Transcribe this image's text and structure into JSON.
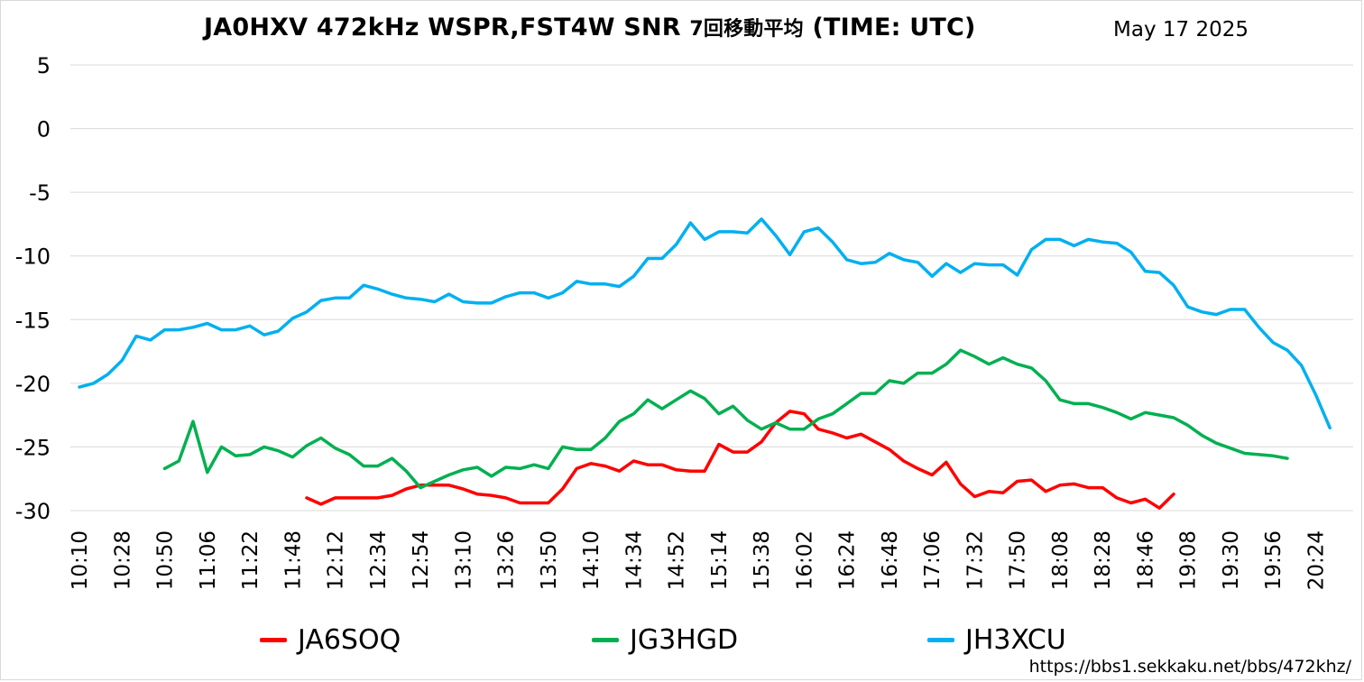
{
  "title_main": "JA0HXV 472kHz WSPR,FST4W SNR",
  "title_sub": "7回移動平均",
  "title_tail": "(TIME: UTC)",
  "date_label": "May 17 2025",
  "source_url": "https://bbs1.sekkaku.net/bbs/472khz/",
  "chart_data": {
    "type": "line",
    "title": "JA0HXV 472kHz WSPR,FST4W SNR 7回移動平均 (TIME: UTC)",
    "xlabel": "",
    "ylabel": "",
    "ylim": [
      -30,
      5
    ],
    "yticks": [
      5,
      0,
      -5,
      -10,
      -15,
      -20,
      -25,
      -30
    ],
    "xtick_labels": [
      "10:10",
      "10:28",
      "10:50",
      "11:06",
      "11:22",
      "11:48",
      "12:12",
      "12:34",
      "12:54",
      "13:10",
      "13:26",
      "13:50",
      "14:10",
      "14:34",
      "14:52",
      "15:14",
      "15:38",
      "16:02",
      "16:24",
      "16:48",
      "17:06",
      "17:32",
      "17:50",
      "18:08",
      "18:28",
      "18:46",
      "19:08",
      "19:30",
      "19:56",
      "20:24"
    ],
    "num_points": 90,
    "grid": true,
    "legend_position": "bottom",
    "series": [
      {
        "name": "JA6SOQ",
        "color": "#ff0000",
        "start_index": 16,
        "values": [
          -29.0,
          -29.5,
          -29.0,
          -29.0,
          -29.0,
          -29.0,
          -28.8,
          -28.3,
          -28.0,
          -28.0,
          -28.0,
          -28.3,
          -28.7,
          -28.8,
          -29.0,
          -29.4,
          -29.4,
          -29.4,
          -28.3,
          -26.7,
          -26.3,
          -26.5,
          -26.9,
          -26.1,
          -26.4,
          -26.4,
          -26.8,
          -26.9,
          -26.9,
          -24.8,
          -25.4,
          -25.4,
          -24.6,
          -23.1,
          -22.2,
          -22.4,
          -23.6,
          -23.9,
          -24.3,
          -24.0,
          -24.6,
          -25.2,
          -26.1,
          -26.7,
          -27.2,
          -26.2,
          -27.9,
          -28.9,
          -28.5,
          -28.6,
          -27.7,
          -27.6,
          -28.5,
          -28.0,
          -27.9,
          -28.2,
          -28.2,
          -29.0,
          -29.4,
          -29.1,
          -29.8,
          -28.7
        ]
      },
      {
        "name": "JG3HGD",
        "color": "#00b050",
        "start_index": 6,
        "values": [
          -26.7,
          -26.1,
          -23.0,
          -27.0,
          -25.0,
          -25.7,
          -25.6,
          -25.0,
          -25.3,
          -25.8,
          -24.9,
          -24.3,
          -25.1,
          -25.6,
          -26.5,
          -26.5,
          -25.9,
          -26.9,
          -28.2,
          -27.7,
          -27.2,
          -26.8,
          -26.6,
          -27.3,
          -26.6,
          -26.7,
          -26.4,
          -26.7,
          -25.0,
          -25.2,
          -25.2,
          -24.3,
          -23.0,
          -22.4,
          -21.3,
          -22.0,
          -21.3,
          -20.6,
          -21.2,
          -22.4,
          -21.8,
          -22.9,
          -23.6,
          -23.1,
          -23.6,
          -23.6,
          -22.8,
          -22.4,
          -21.6,
          -20.8,
          -20.8,
          -19.8,
          -20.0,
          -19.2,
          -19.2,
          -18.5,
          -17.4,
          -17.9,
          -18.5,
          -18.0,
          -18.5,
          -18.8,
          -19.8,
          -21.3,
          -21.6,
          -21.6,
          -21.9,
          -22.3,
          -22.8,
          -22.3,
          -22.5,
          -22.7,
          -23.3,
          -24.1,
          -24.7,
          -25.1,
          -25.5,
          -25.6,
          -25.7,
          -25.9
        ]
      },
      {
        "name": "JH3XCU",
        "color": "#00b0f0",
        "start_index": 0,
        "values": [
          -20.3,
          -20.0,
          -19.3,
          -18.2,
          -16.3,
          -16.6,
          -15.8,
          -15.8,
          -15.6,
          -15.3,
          -15.8,
          -15.8,
          -15.5,
          -16.2,
          -15.9,
          -14.9,
          -14.4,
          -13.5,
          -13.3,
          -13.3,
          -12.3,
          -12.6,
          -13.0,
          -13.3,
          -13.4,
          -13.6,
          -13.0,
          -13.6,
          -13.7,
          -13.7,
          -13.2,
          -12.9,
          -12.9,
          -13.3,
          -12.9,
          -12.0,
          -12.2,
          -12.2,
          -12.4,
          -11.6,
          -10.2,
          -10.2,
          -9.1,
          -7.4,
          -8.7,
          -8.1,
          -8.1,
          -8.2,
          -7.1,
          -8.4,
          -9.9,
          -8.1,
          -7.8,
          -8.9,
          -10.3,
          -10.6,
          -10.5,
          -9.8,
          -10.3,
          -10.5,
          -11.6,
          -10.6,
          -11.3,
          -10.6,
          -10.7,
          -10.7,
          -11.5,
          -9.5,
          -8.7,
          -8.7,
          -9.2,
          -8.7,
          -8.9,
          -9.0,
          -9.7,
          -11.2,
          -11.3,
          -12.3,
          -14.0,
          -14.4,
          -14.6,
          -14.2,
          -14.2,
          -15.6,
          -16.8,
          -17.4,
          -18.6,
          -20.9,
          -23.5
        ]
      }
    ]
  }
}
